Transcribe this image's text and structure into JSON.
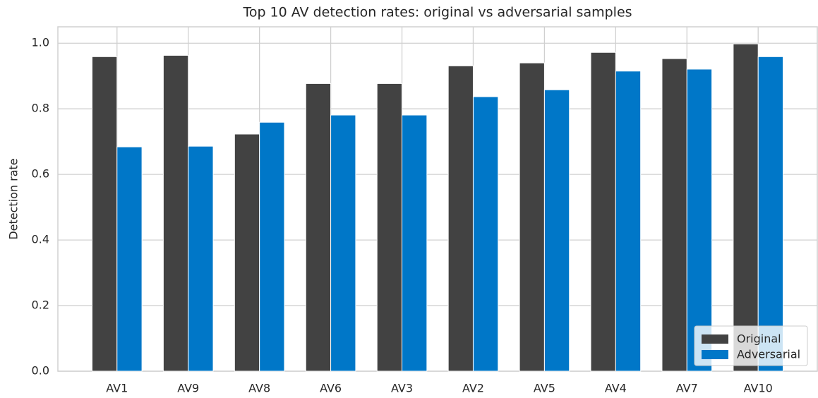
{
  "chart_data": {
    "type": "bar",
    "title": "Top 10 AV detection rates: original vs adversarial samples",
    "y_label": "Detection rate",
    "categories": [
      "AV1",
      "AV9",
      "AV8",
      "AV6",
      "AV3",
      "AV2",
      "AV5",
      "AV4",
      "AV7",
      "AV10"
    ],
    "series": [
      {
        "name": "Original",
        "color": "#424242",
        "values": [
          0.959,
          0.963,
          0.723,
          0.877,
          0.877,
          0.931,
          0.94,
          0.972,
          0.953,
          0.998
        ]
      },
      {
        "name": "Adversarial",
        "color": "#0077c8",
        "values": [
          0.684,
          0.686,
          0.759,
          0.781,
          0.781,
          0.837,
          0.858,
          0.915,
          0.921,
          0.959
        ]
      }
    ],
    "ylim": [
      0,
      1.05
    ],
    "yticks": [
      {
        "value": 0,
        "label": "0.0"
      },
      0.2,
      0.4,
      0.6,
      0.8,
      {
        "value": 1,
        "label": "1.0"
      }
    ],
    "grid": true,
    "legend": "lower right"
  }
}
